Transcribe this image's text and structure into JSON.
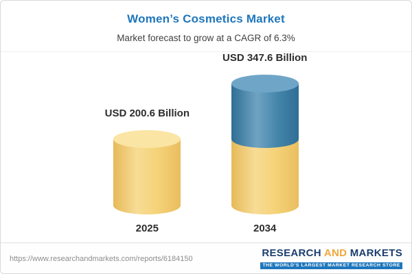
{
  "header": {
    "title": "Women’s Cosmetics Market",
    "subtitle": "Market forecast to grow at a CAGR of 6.3%"
  },
  "chart_data": {
    "type": "bar",
    "variant": "3d-cylinder",
    "title": "Women’s Cosmetics Market",
    "subtitle": "Market forecast to grow at a CAGR of 6.3%",
    "cagr_pct": 6.3,
    "unit": "USD Billion",
    "categories": [
      "2025",
      "2034"
    ],
    "values": [
      200.6,
      347.6
    ],
    "value_labels": [
      "USD 200.6 Billion",
      "USD 347.6 Billion"
    ],
    "ylim": [
      0,
      360
    ],
    "grid": false,
    "legend": "none",
    "colors": {
      "base_segment": "#F2CF74",
      "growth_segment": "#3E7FA8",
      "title_accent": "#1D76BC"
    }
  },
  "footer": {
    "url": "https://www.researchandmarkets.com/reports/6184150",
    "brand": {
      "word1": "RESEARCH",
      "word2": "AND",
      "word3": "MARKETS",
      "tagline": "THE WORLD’S LARGEST MARKET RESEARCH STORE",
      "navy": "#1C3E6E",
      "gold": "#F0A63C",
      "tagline_bg": "#1D76BC"
    }
  }
}
